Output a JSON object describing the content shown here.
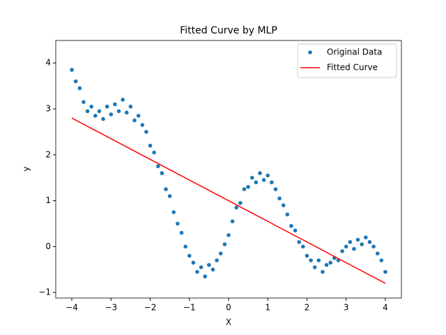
{
  "chart_data": {
    "type": "scatter",
    "title": "Fitted Curve by MLP",
    "x_label": "X",
    "y_label": "y",
    "xlim": [
      -4.41,
      4.41
    ],
    "ylim": [
      -1.12,
      4.49
    ],
    "xticks": [
      {
        "value": -4,
        "label": "−4"
      },
      {
        "value": -3,
        "label": "−3"
      },
      {
        "value": -2,
        "label": "−2"
      },
      {
        "value": -1,
        "label": "−1"
      },
      0,
      1,
      2,
      3,
      4
    ],
    "yticks": [
      {
        "value": -1,
        "label": "−1"
      },
      0,
      1,
      2,
      3,
      4
    ],
    "legend": "upper right",
    "series": [
      {
        "name": "Original Data",
        "type": "scatter",
        "color": "#1f77b4",
        "x": [
          -4,
          -3.9,
          -3.8,
          -3.7,
          -3.6,
          -3.5,
          -3.4,
          -3.3,
          -3.2,
          -3.1,
          -3,
          -2.9,
          -2.8,
          -2.7,
          -2.6,
          -2.5,
          -2.4,
          -2.3,
          -2.2,
          -2.1,
          -2,
          -1.9,
          -1.8,
          -1.7,
          -1.6,
          -1.5,
          -1.4,
          -1.3,
          -1.2,
          -1.1,
          -1,
          -0.9,
          -0.8,
          -0.7,
          -0.6,
          -0.5,
          -0.4,
          -0.3,
          -0.2,
          -0.1,
          0,
          0.1,
          0.2,
          0.3,
          0.4,
          0.5,
          0.6,
          0.7,
          0.8,
          0.9,
          1,
          1.1,
          1.2,
          1.3,
          1.4,
          1.5,
          1.6,
          1.7,
          1.8,
          1.9,
          2,
          2.1,
          2.2,
          2.3,
          2.4,
          2.5,
          2.6,
          2.7,
          2.8,
          2.9,
          3,
          3.1,
          3.2,
          3.3,
          3.4,
          3.5,
          3.6,
          3.7,
          3.8,
          3.9,
          4
        ],
        "values": [
          3.85,
          3.6,
          3.45,
          3.15,
          2.95,
          3.05,
          2.85,
          2.95,
          2.78,
          3.05,
          2.88,
          3.1,
          2.95,
          3.2,
          2.92,
          3.05,
          2.75,
          2.85,
          2.65,
          2.5,
          2.2,
          2.05,
          1.75,
          1.6,
          1.25,
          1.1,
          0.75,
          0.5,
          0.3,
          0,
          -0.2,
          -0.35,
          -0.55,
          -0.45,
          -0.65,
          -0.4,
          -0.5,
          -0.3,
          -0.15,
          0.05,
          0.25,
          0.55,
          0.85,
          0.95,
          1.25,
          1.3,
          1.5,
          1.4,
          1.6,
          1.45,
          1.55,
          1.4,
          1.25,
          1.05,
          0.9,
          0.7,
          0.45,
          0.35,
          0.1,
          0,
          -0.2,
          -0.3,
          -0.45,
          -0.3,
          -0.55,
          -0.4,
          -0.35,
          -0.25,
          -0.3,
          -0.1,
          0,
          0.1,
          -0.05,
          0.15,
          0.05,
          0.2,
          0.1,
          0,
          -0.15,
          -0.3,
          -0.55
        ]
      },
      {
        "name": "Fitted Curve",
        "type": "line",
        "color": "#ff0000",
        "x": [
          -4,
          4
        ],
        "values": [
          2.8,
          -0.8
        ]
      }
    ]
  }
}
